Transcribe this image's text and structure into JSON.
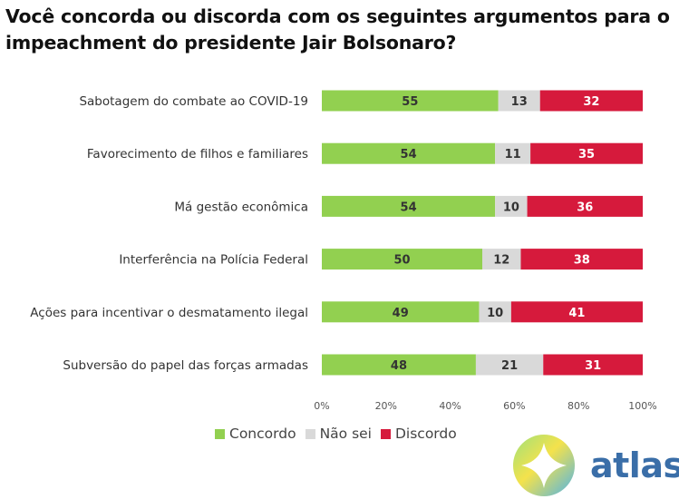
{
  "colors": {
    "concordo": "#92d050",
    "nao_sei": "#d9d9d9",
    "discordo": "#d61a3c"
  },
  "chart_data": {
    "type": "bar",
    "orientation": "horizontal-stacked",
    "title": "Você concorda ou discorda com os seguintes argumentos para o impeachment do presidente Jair Bolsonaro?",
    "categories": [
      "Sabotagem do combate ao COVID-19",
      "Favorecimento de filhos e familiares",
      "Má gestão econômica",
      "Interferência na Polícia Federal",
      "Ações para incentivar o desmatamento ilegal",
      "Subversão do papel das forças armadas"
    ],
    "series": [
      {
        "name": "Concordo",
        "values": [
          55,
          54,
          54,
          50,
          49,
          48
        ]
      },
      {
        "name": "Não sei",
        "values": [
          13,
          11,
          10,
          12,
          10,
          21
        ]
      },
      {
        "name": "Discordo",
        "values": [
          32,
          35,
          36,
          38,
          41,
          31
        ]
      }
    ],
    "xlim": [
      0,
      100
    ],
    "xticks": [
      "0%",
      "20%",
      "40%",
      "60%",
      "80%",
      "100%"
    ],
    "legend_position": "bottom-left"
  },
  "logo": {
    "text": "atlas"
  }
}
